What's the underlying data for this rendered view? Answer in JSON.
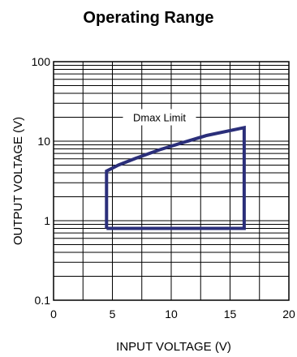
{
  "chart_data": {
    "type": "line",
    "title": "Operating Range",
    "xlabel": "INPUT VOLTAGE (V)",
    "ylabel": "OUTPUT VOLTAGE (V)",
    "xlim": [
      0,
      20
    ],
    "ylim": [
      0.1,
      100
    ],
    "yscale": "log",
    "xticks": [
      "0",
      "5",
      "10",
      "15",
      "20"
    ],
    "yticks": [
      "0.1",
      "1",
      "10",
      "100"
    ],
    "grid": true,
    "annotation": "Dmax Limit",
    "series": [
      {
        "color": "#2b2f7a",
        "x": [
          4.5,
          4.5,
          5.5,
          7,
          9,
          11,
          13,
          16.2,
          16.2,
          4.5
        ],
        "y": [
          0.8,
          4.2,
          5.0,
          6.1,
          7.8,
          9.6,
          11.8,
          14.8,
          0.8,
          0.8
        ]
      }
    ]
  }
}
